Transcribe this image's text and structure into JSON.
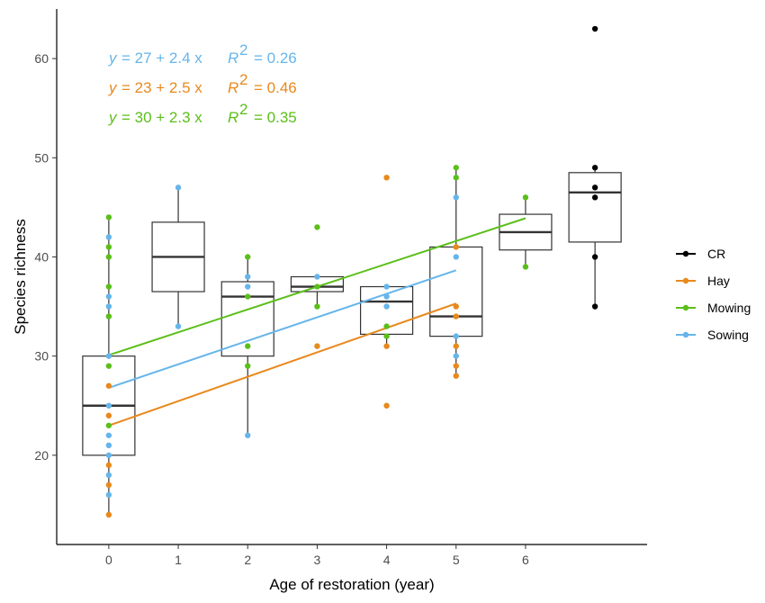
{
  "chart_data": {
    "type": "boxplot_scatter",
    "title": "",
    "xlabel": "Age of restoration (year)",
    "ylabel": "Species richness",
    "x_ticks": [
      0,
      1,
      2,
      3,
      4,
      5,
      6
    ],
    "x_tick_labels": [
      "0",
      "1",
      "2",
      "3",
      "4",
      "5",
      "6"
    ],
    "y_ticks": [
      20,
      30,
      40,
      50,
      60
    ],
    "y_tick_labels": [
      "20",
      "30",
      "40",
      "50",
      "60"
    ],
    "xlim": [
      -0.75,
      7.75
    ],
    "ylim": [
      11,
      65
    ],
    "colors": {
      "CR": "#000000",
      "Hay": "#e8891c",
      "Mowing": "#5bbf1a",
      "Sowing": "#66b5ea"
    },
    "legend": [
      {
        "key": "CR",
        "label": "CR"
      },
      {
        "key": "Hay",
        "label": "Hay"
      },
      {
        "key": "Mowing",
        "label": "Mowing"
      },
      {
        "key": "Sowing",
        "label": "Sowing"
      }
    ],
    "equations": [
      {
        "group": "Sowing",
        "lhs": "y",
        "rhs": "= 27 + 2.4 x",
        "r2_label": "R",
        "r2_sup": "2",
        "r2_value": "= 0.26"
      },
      {
        "group": "Hay",
        "lhs": "y",
        "rhs": "= 23 + 2.5 x",
        "r2_label": "R",
        "r2_sup": "2",
        "r2_value": "= 0.46"
      },
      {
        "group": "Mowing",
        "lhs": "y",
        "rhs": "= 30 + 2.3 x",
        "r2_label": "R",
        "r2_sup": "2",
        "r2_value": "= 0.35"
      }
    ],
    "boxes": [
      {
        "x": 0,
        "min": 14,
        "q1": 20,
        "median": 25,
        "q3": 30,
        "max": 44
      },
      {
        "x": 1,
        "min": 33,
        "q1": 36.5,
        "median": 40,
        "q3": 43.5,
        "max": 47
      },
      {
        "x": 2,
        "min": 22,
        "q1": 30,
        "median": 36,
        "q3": 37.5,
        "max": 40
      },
      {
        "x": 3,
        "min": 35,
        "q1": 36.5,
        "median": 37,
        "q3": 38,
        "max": 38
      },
      {
        "x": 4,
        "min": 31,
        "q1": 32.2,
        "median": 35.5,
        "q3": 37,
        "max": 37
      },
      {
        "x": 5,
        "min": 28,
        "q1": 32,
        "median": 34,
        "q3": 41,
        "max": 49
      },
      {
        "x": 6,
        "min": 39,
        "q1": 40.7,
        "median": 42.5,
        "q3": 44.3,
        "max": 46
      },
      {
        "x": 7,
        "min": 35,
        "q1": 41.5,
        "median": 46.5,
        "q3": 48.5,
        "max": 49
      }
    ],
    "points": [
      {
        "group": "Mowing",
        "x": 0,
        "y": 44
      },
      {
        "group": "Sowing",
        "x": 0,
        "y": 42
      },
      {
        "group": "Mowing",
        "x": 0,
        "y": 41
      },
      {
        "group": "Mowing",
        "x": 0,
        "y": 40
      },
      {
        "group": "Mowing",
        "x": 0,
        "y": 37
      },
      {
        "group": "Sowing",
        "x": 0,
        "y": 36
      },
      {
        "group": "Sowing",
        "x": 0,
        "y": 35
      },
      {
        "group": "Mowing",
        "x": 0,
        "y": 34
      },
      {
        "group": "Sowing",
        "x": 0,
        "y": 30
      },
      {
        "group": "Mowing",
        "x": 0,
        "y": 29
      },
      {
        "group": "Hay",
        "x": 0,
        "y": 27
      },
      {
        "group": "Sowing",
        "x": 0,
        "y": 25
      },
      {
        "group": "Hay",
        "x": 0,
        "y": 24
      },
      {
        "group": "Mowing",
        "x": 0,
        "y": 23
      },
      {
        "group": "Sowing",
        "x": 0,
        "y": 22
      },
      {
        "group": "Sowing",
        "x": 0,
        "y": 21
      },
      {
        "group": "Sowing",
        "x": 0,
        "y": 20
      },
      {
        "group": "Hay",
        "x": 0,
        "y": 19
      },
      {
        "group": "Sowing",
        "x": 0,
        "y": 18
      },
      {
        "group": "Hay",
        "x": 0,
        "y": 17
      },
      {
        "group": "Sowing",
        "x": 0,
        "y": 16
      },
      {
        "group": "Hay",
        "x": 0,
        "y": 14
      },
      {
        "group": "Sowing",
        "x": 1,
        "y": 47
      },
      {
        "group": "Sowing",
        "x": 1,
        "y": 33
      },
      {
        "group": "Mowing",
        "x": 2,
        "y": 40
      },
      {
        "group": "Sowing",
        "x": 2,
        "y": 38
      },
      {
        "group": "Sowing",
        "x": 2,
        "y": 37
      },
      {
        "group": "Mowing",
        "x": 2,
        "y": 36
      },
      {
        "group": "Mowing",
        "x": 2,
        "y": 31
      },
      {
        "group": "Mowing",
        "x": 2,
        "y": 29
      },
      {
        "group": "Sowing",
        "x": 2,
        "y": 22
      },
      {
        "group": "Mowing",
        "x": 3,
        "y": 43
      },
      {
        "group": "Sowing",
        "x": 3,
        "y": 38
      },
      {
        "group": "Mowing",
        "x": 3,
        "y": 37
      },
      {
        "group": "Mowing",
        "x": 3,
        "y": 35
      },
      {
        "group": "Hay",
        "x": 3,
        "y": 31
      },
      {
        "group": "Hay",
        "x": 4,
        "y": 48
      },
      {
        "group": "Sowing",
        "x": 4,
        "y": 37
      },
      {
        "group": "Sowing",
        "x": 4,
        "y": 36
      },
      {
        "group": "Sowing",
        "x": 4,
        "y": 35
      },
      {
        "group": "Mowing",
        "x": 4,
        "y": 33
      },
      {
        "group": "Mowing",
        "x": 4,
        "y": 32
      },
      {
        "group": "Hay",
        "x": 4,
        "y": 31
      },
      {
        "group": "Hay",
        "x": 4,
        "y": 25
      },
      {
        "group": "Mowing",
        "x": 5,
        "y": 49
      },
      {
        "group": "Mowing",
        "x": 5,
        "y": 48
      },
      {
        "group": "Sowing",
        "x": 5,
        "y": 46
      },
      {
        "group": "Hay",
        "x": 5,
        "y": 41
      },
      {
        "group": "Sowing",
        "x": 5,
        "y": 40
      },
      {
        "group": "Hay",
        "x": 5,
        "y": 35
      },
      {
        "group": "Hay",
        "x": 5,
        "y": 34
      },
      {
        "group": "Sowing",
        "x": 5,
        "y": 32
      },
      {
        "group": "Hay",
        "x": 5,
        "y": 31
      },
      {
        "group": "Sowing",
        "x": 5,
        "y": 30
      },
      {
        "group": "Hay",
        "x": 5,
        "y": 29
      },
      {
        "group": "Hay",
        "x": 5,
        "y": 28
      },
      {
        "group": "Mowing",
        "x": 6,
        "y": 46
      },
      {
        "group": "Mowing",
        "x": 6,
        "y": 39
      },
      {
        "group": "CR",
        "x": 7,
        "y": 63
      },
      {
        "group": "CR",
        "x": 7,
        "y": 49
      },
      {
        "group": "CR",
        "x": 7,
        "y": 47
      },
      {
        "group": "CR",
        "x": 7,
        "y": 46
      },
      {
        "group": "CR",
        "x": 7,
        "y": 40
      },
      {
        "group": "CR",
        "x": 7,
        "y": 35
      }
    ],
    "fit_lines": [
      {
        "group": "Mowing",
        "intercept": 30.1,
        "slope": 2.3,
        "x_range": [
          0,
          6
        ]
      },
      {
        "group": "Sowing",
        "intercept": 26.8,
        "slope": 2.37,
        "x_range": [
          0,
          5
        ]
      },
      {
        "group": "Hay",
        "intercept": 23.0,
        "slope": 2.46,
        "x_range": [
          0,
          5
        ]
      }
    ]
  }
}
